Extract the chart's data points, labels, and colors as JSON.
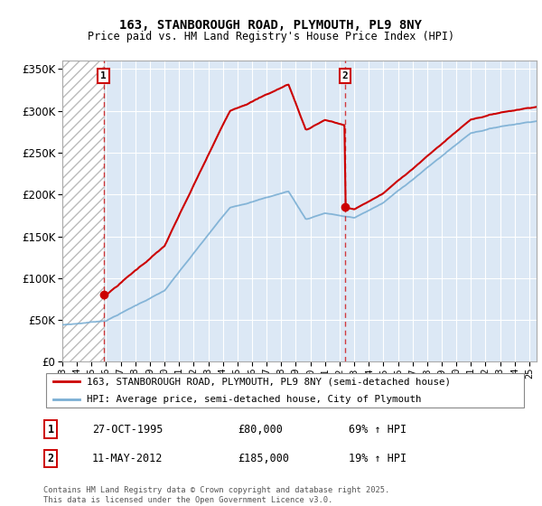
{
  "title": "163, STANBOROUGH ROAD, PLYMOUTH, PL9 8NY",
  "subtitle": "Price paid vs. HM Land Registry's House Price Index (HPI)",
  "sale1_date": "27-OCT-1995",
  "sale1_price": 80000,
  "sale1_year": 1995.82,
  "sale2_date": "11-MAY-2012",
  "sale2_price": 185000,
  "sale2_year": 2012.37,
  "sale1_hpi_text": "69% ↑ HPI",
  "sale2_hpi_text": "19% ↑ HPI",
  "legend_house": "163, STANBOROUGH ROAD, PLYMOUTH, PL9 8NY (semi-detached house)",
  "legend_hpi": "HPI: Average price, semi-detached house, City of Plymouth",
  "footer": "Contains HM Land Registry data © Crown copyright and database right 2025.\nThis data is licensed under the Open Government Licence v3.0.",
  "house_color": "#cc0000",
  "hpi_color": "#7bafd4",
  "ylim": [
    0,
    360000
  ],
  "xlim_start": 1993.0,
  "xlim_end": 2025.5,
  "plot_bg": "#dce8f5",
  "hatch_color": "#e0e0e0"
}
